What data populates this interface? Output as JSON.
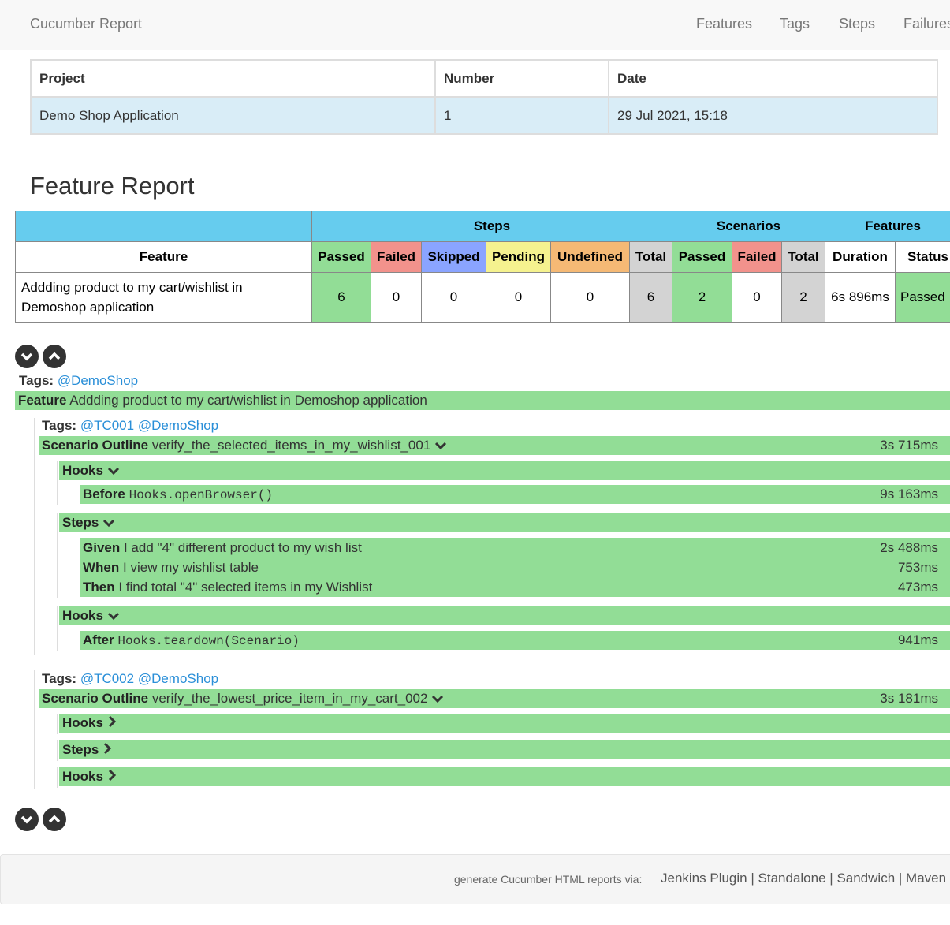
{
  "nav": {
    "brand": "Cucumber Report",
    "links": [
      "Features",
      "Tags",
      "Steps",
      "Failures"
    ]
  },
  "project_table": {
    "headers": [
      "Project",
      "Number",
      "Date"
    ],
    "row": [
      "Demo Shop Application",
      "1",
      "29 Jul 2021, 15:18"
    ]
  },
  "title": "Feature Report",
  "stats": {
    "groups": [
      "Steps",
      "Scenarios",
      "Features"
    ],
    "headers": [
      "Feature",
      "Passed",
      "Failed",
      "Skipped",
      "Pending",
      "Undefined",
      "Total",
      "Passed",
      "Failed",
      "Total",
      "Duration",
      "Status"
    ],
    "row": [
      "Addding product to my cart/wishlist in Demoshop application",
      "6",
      "0",
      "0",
      "0",
      "0",
      "6",
      "2",
      "0",
      "2",
      "6s 896ms",
      "Passed"
    ]
  },
  "colors": {
    "passed": "#92dd96",
    "failed": "#f2928c",
    "skipped": "#8aa4ff",
    "pending": "#f5f28f",
    "undefined": "#f5b975",
    "header": "#66ccee"
  },
  "feature": {
    "tags_label": "Tags:",
    "tags": "@DemoShop",
    "keyword": "Feature",
    "name": "Addding product to my cart/wishlist in Demoshop application"
  },
  "scenarios": [
    {
      "tags": "@TC001 @DemoShop",
      "keyword": "Scenario Outline",
      "name": "verify_the_selected_items_in_my_wishlist_001",
      "duration": "3s 715ms",
      "hooks_label": "Hooks",
      "steps_label": "Steps",
      "before": {
        "keyword": "Before",
        "name": "Hooks.openBrowser()",
        "duration": "9s 163ms"
      },
      "steps": [
        {
          "keyword": "Given",
          "name": "I add \"4\" different product to my wish list",
          "duration": "2s 488ms"
        },
        {
          "keyword": "When",
          "name": "I view my wishlist table",
          "duration": "753ms"
        },
        {
          "keyword": "Then",
          "name": "I find total \"4\" selected items in my Wishlist",
          "duration": "473ms"
        }
      ],
      "after": {
        "keyword": "After",
        "name": "Hooks.teardown(Scenario)",
        "duration": "941ms"
      }
    },
    {
      "tags": "@TC002 @DemoShop",
      "keyword": "Scenario Outline",
      "name": "verify_the_lowest_price_item_in_my_cart_002",
      "duration": "3s 181ms",
      "hooks_label": "Hooks",
      "steps_label": "Steps"
    }
  ],
  "footer": {
    "text": "generate Cucumber HTML reports via:",
    "links": [
      "Jenkins Plugin",
      "Standalone",
      "Sandwich",
      "Maven"
    ],
    "sep": "|"
  }
}
